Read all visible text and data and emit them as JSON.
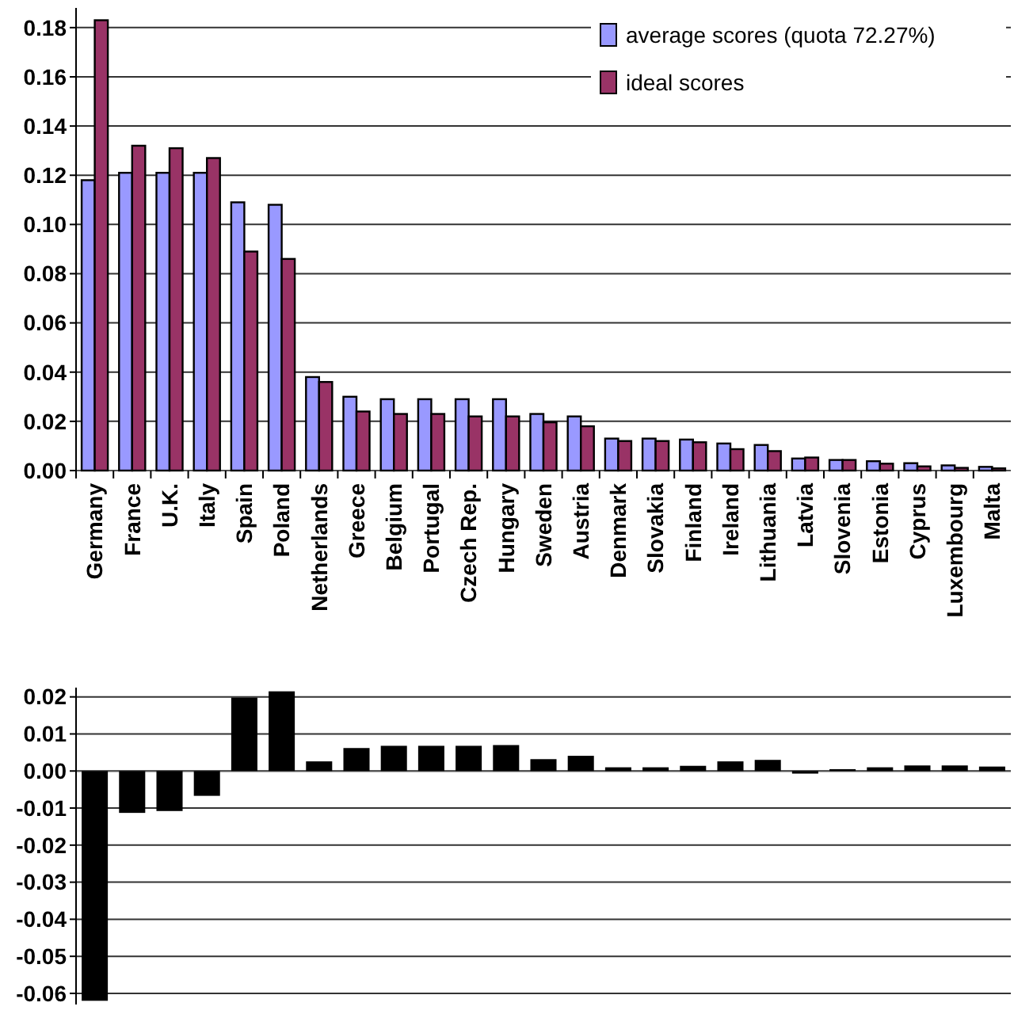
{
  "chart_data": [
    {
      "type": "bar",
      "categories": [
        "Germany",
        "France",
        "U.K.",
        "Italy",
        "Spain",
        "Poland",
        "Netherlands",
        "Greece",
        "Belgium",
        "Portugal",
        "Czech Rep.",
        "Hungary",
        "Sweden",
        "Austria",
        "Denmark",
        "Slovakia",
        "Finland",
        "Ireland",
        "Lithuania",
        "Latvia",
        "Slovenia",
        "Estonia",
        "Cyprus",
        "Luxembourg",
        "Malta"
      ],
      "series": [
        {
          "name": "average scores (quota 72.27%)",
          "color": "#9999ff",
          "values": [
            0.118,
            0.121,
            0.121,
            0.121,
            0.109,
            0.108,
            0.038,
            0.03,
            0.029,
            0.029,
            0.029,
            0.029,
            0.023,
            0.022,
            0.013,
            0.013,
            0.0126,
            0.011,
            0.0104,
            0.0049,
            0.0043,
            0.0038,
            0.003,
            0.0021,
            0.0015
          ]
        },
        {
          "name": "ideal scores",
          "color": "#993366",
          "values": [
            0.183,
            0.132,
            0.131,
            0.127,
            0.089,
            0.086,
            0.036,
            0.024,
            0.023,
            0.023,
            0.022,
            0.022,
            0.0196,
            0.018,
            0.012,
            0.012,
            0.0115,
            0.0087,
            0.0079,
            0.0053,
            0.0043,
            0.0028,
            0.0017,
            0.0011,
            0.0009
          ]
        }
      ],
      "ylim": [
        0,
        0.188
      ],
      "yticks": [
        {
          "value": 0,
          "label": "0.00"
        },
        {
          "value": 0.02,
          "label": "0.02"
        },
        {
          "value": 0.04,
          "label": "0.04"
        },
        {
          "value": 0.06,
          "label": "0.06"
        },
        {
          "value": 0.08,
          "label": "0.08"
        },
        {
          "value": 0.1,
          "label": "0.10"
        },
        {
          "value": 0.12,
          "label": "0.12"
        },
        {
          "value": 0.14,
          "label": "0.14"
        },
        {
          "value": 0.16,
          "label": "0.16"
        },
        {
          "value": 0.18,
          "label": "0.18"
        }
      ],
      "grid": "y",
      "legend": "top right"
    },
    {
      "type": "bar",
      "categories": [
        null,
        null,
        null,
        null,
        null,
        null,
        null,
        null,
        null,
        null,
        null,
        null,
        null,
        null,
        null,
        null,
        null,
        null,
        null,
        null,
        null,
        null,
        null,
        null,
        null
      ],
      "values": [
        -0.062,
        -0.0113,
        -0.0108,
        -0.0067,
        0.0198,
        0.0215,
        0.0026,
        0.0062,
        0.0068,
        0.0068,
        0.0068,
        0.007,
        0.0032,
        0.0041,
        0.001,
        0.001,
        0.0014,
        0.0026,
        0.003,
        -0.0007,
        0.0005,
        0.001,
        0.0015,
        0.0015,
        0.0012
      ],
      "color": "#000000",
      "ylim": [
        -0.063,
        0.0225
      ],
      "yticks": [
        {
          "value": -0.06,
          "label": "-0.06"
        },
        {
          "value": -0.05,
          "label": "-0.05"
        },
        {
          "value": -0.04,
          "label": "-0.04"
        },
        {
          "value": -0.03,
          "label": "-0.03"
        },
        {
          "value": -0.02,
          "label": "-0.02"
        },
        {
          "value": -0.01,
          "label": "-0.01"
        },
        {
          "value": 0,
          "label": "0.00"
        },
        {
          "value": 0.01,
          "label": "0.01"
        },
        {
          "value": 0.02,
          "label": "0.02"
        }
      ],
      "grid": "y",
      "tick_labels": "y"
    }
  ]
}
